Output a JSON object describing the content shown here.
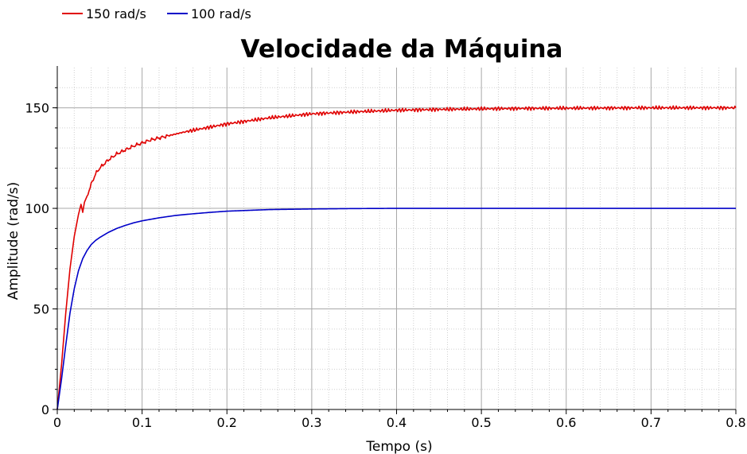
{
  "chart_data": {
    "type": "line",
    "title": "Velocidade da Máquina",
    "xlabel": "Tempo (s)",
    "ylabel": "Amplitude (rad/s)",
    "xlim": [
      0,
      0.8
    ],
    "ylim": [
      0,
      170
    ],
    "x_ticks": [
      0,
      0.1,
      0.2,
      0.3,
      0.4,
      0.5,
      0.6,
      0.7,
      0.8
    ],
    "x_tick_labels": [
      "0",
      "0.1",
      "0.2",
      "0.3",
      "0.4",
      "0.5",
      "0.6",
      "0.7",
      "0.8"
    ],
    "y_ticks": [
      0,
      50,
      100,
      150
    ],
    "y_tick_labels": [
      "0",
      "50",
      "100",
      "150"
    ],
    "grid": true,
    "legend_position": "top-left",
    "series": [
      {
        "name": "150 rad/s",
        "color": "#e00000",
        "x": [
          0,
          0.005,
          0.01,
          0.015,
          0.02,
          0.025,
          0.028,
          0.03,
          0.032,
          0.035,
          0.04,
          0.045,
          0.05,
          0.06,
          0.07,
          0.08,
          0.09,
          0.1,
          0.11,
          0.12,
          0.13,
          0.15,
          0.175,
          0.2,
          0.225,
          0.25,
          0.275,
          0.3,
          0.35,
          0.4,
          0.45,
          0.5,
          0.55,
          0.6,
          0.65,
          0.7,
          0.75,
          0.8
        ],
        "values": [
          0,
          22,
          48,
          70,
          86,
          97,
          102,
          98,
          103,
          106,
          112,
          117,
          120,
          124,
          127,
          129,
          131,
          132.5,
          134,
          135,
          136,
          138,
          140,
          142,
          143.5,
          145,
          146,
          147,
          148,
          148.8,
          149.2,
          149.5,
          149.7,
          149.8,
          149.9,
          150,
          150,
          150
        ]
      },
      {
        "name": "100 rad/s",
        "color": "#0000c8",
        "x": [
          0,
          0.005,
          0.01,
          0.015,
          0.02,
          0.025,
          0.03,
          0.035,
          0.04,
          0.045,
          0.05,
          0.06,
          0.07,
          0.08,
          0.09,
          0.1,
          0.12,
          0.14,
          0.16,
          0.18,
          0.2,
          0.25,
          0.3,
          0.35,
          0.4,
          0.5,
          0.6,
          0.7,
          0.8
        ],
        "values": [
          0,
          15,
          32,
          48,
          60,
          69,
          75,
          79,
          82,
          84,
          85.5,
          88,
          90,
          91.5,
          92.8,
          93.8,
          95.3,
          96.5,
          97.3,
          98,
          98.6,
          99.4,
          99.7,
          99.9,
          100,
          100,
          100,
          100,
          100
        ]
      }
    ]
  }
}
